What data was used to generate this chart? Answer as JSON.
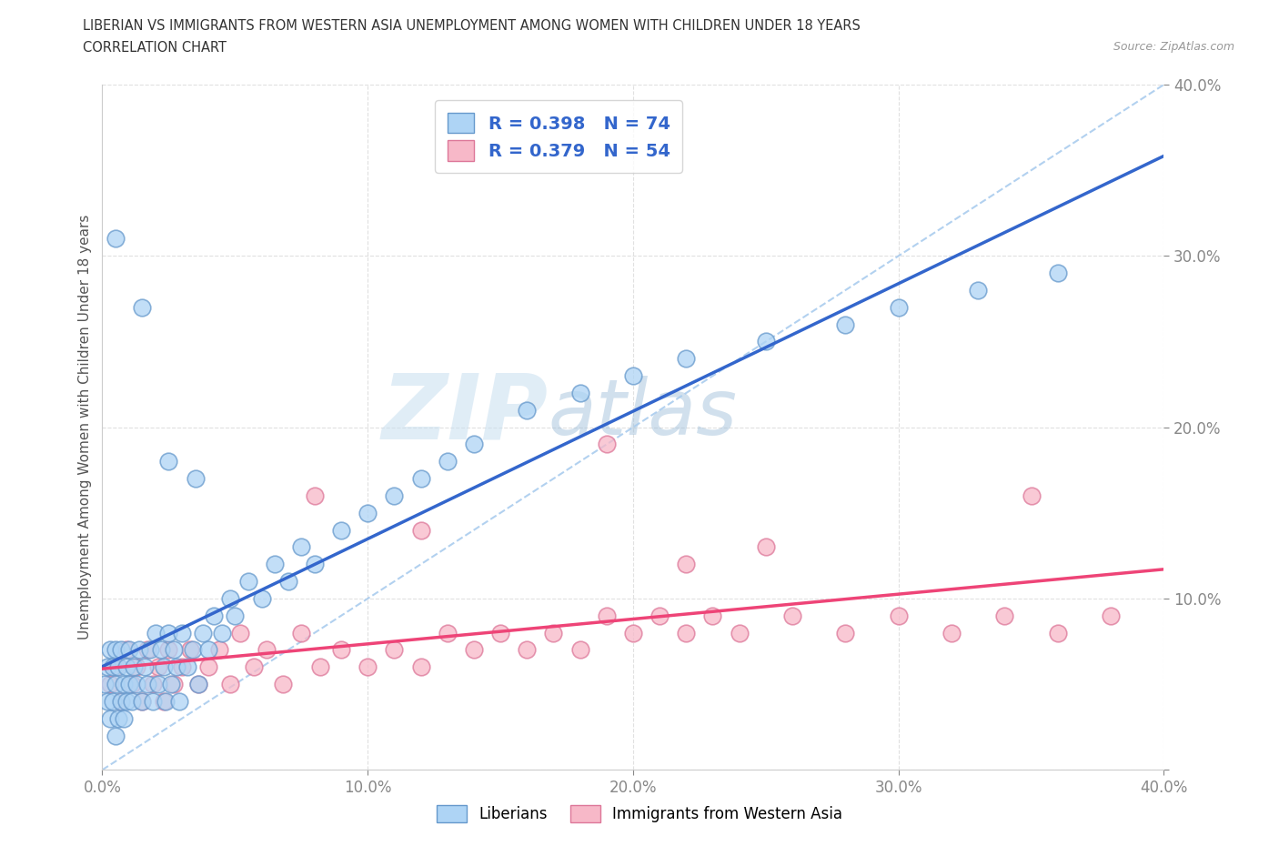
{
  "title_line1": "LIBERIAN VS IMMIGRANTS FROM WESTERN ASIA UNEMPLOYMENT AMONG WOMEN WITH CHILDREN UNDER 18 YEARS",
  "title_line2": "CORRELATION CHART",
  "source": "Source: ZipAtlas.com",
  "ylabel": "Unemployment Among Women with Children Under 18 years",
  "xlim": [
    0.0,
    0.4
  ],
  "ylim": [
    0.0,
    0.4
  ],
  "liberian_face_color": "#aed4f5",
  "liberian_edge_color": "#6699cc",
  "western_face_color": "#f7b8c8",
  "western_edge_color": "#dd7799",
  "liberian_line_color": "#3366cc",
  "western_line_color": "#ee4477",
  "diagonal_color": "#aaccee",
  "R_liberian": 0.398,
  "N_liberian": 74,
  "R_western": 0.379,
  "N_western": 54,
  "legend_text_color": "#3366cc",
  "title_color": "#333333",
  "axis_tick_color": "#6699cc",
  "grid_color": "#dddddd",
  "watermark_zip_color": "#d0e4f5",
  "watermark_atlas_color": "#b8d4e8",
  "lib_x": [
    0.001,
    0.002,
    0.002,
    0.003,
    0.003,
    0.004,
    0.004,
    0.005,
    0.005,
    0.005,
    0.006,
    0.006,
    0.007,
    0.007,
    0.008,
    0.008,
    0.009,
    0.009,
    0.01,
    0.01,
    0.011,
    0.012,
    0.013,
    0.014,
    0.015,
    0.016,
    0.017,
    0.018,
    0.019,
    0.02,
    0.021,
    0.022,
    0.023,
    0.024,
    0.025,
    0.026,
    0.027,
    0.028,
    0.029,
    0.03,
    0.032,
    0.034,
    0.036,
    0.038,
    0.04,
    0.042,
    0.045,
    0.048,
    0.05,
    0.055,
    0.06,
    0.065,
    0.07,
    0.075,
    0.08,
    0.09,
    0.1,
    0.11,
    0.12,
    0.13,
    0.14,
    0.16,
    0.18,
    0.2,
    0.22,
    0.25,
    0.28,
    0.3,
    0.33,
    0.36,
    0.005,
    0.015,
    0.025,
    0.035
  ],
  "lib_y": [
    0.05,
    0.04,
    0.06,
    0.03,
    0.07,
    0.04,
    0.06,
    0.02,
    0.05,
    0.07,
    0.03,
    0.06,
    0.04,
    0.07,
    0.03,
    0.05,
    0.04,
    0.06,
    0.05,
    0.07,
    0.04,
    0.06,
    0.05,
    0.07,
    0.04,
    0.06,
    0.05,
    0.07,
    0.04,
    0.08,
    0.05,
    0.07,
    0.06,
    0.04,
    0.08,
    0.05,
    0.07,
    0.06,
    0.04,
    0.08,
    0.06,
    0.07,
    0.05,
    0.08,
    0.07,
    0.09,
    0.08,
    0.1,
    0.09,
    0.11,
    0.1,
    0.12,
    0.11,
    0.13,
    0.12,
    0.14,
    0.15,
    0.16,
    0.17,
    0.18,
    0.19,
    0.21,
    0.22,
    0.23,
    0.24,
    0.25,
    0.26,
    0.27,
    0.28,
    0.29,
    0.31,
    0.27,
    0.18,
    0.17
  ],
  "west_x": [
    0.003,
    0.005,
    0.007,
    0.009,
    0.011,
    0.013,
    0.015,
    0.017,
    0.019,
    0.021,
    0.023,
    0.025,
    0.027,
    0.03,
    0.033,
    0.036,
    0.04,
    0.044,
    0.048,
    0.052,
    0.057,
    0.062,
    0.068,
    0.075,
    0.082,
    0.09,
    0.1,
    0.11,
    0.12,
    0.13,
    0.14,
    0.15,
    0.16,
    0.17,
    0.18,
    0.19,
    0.2,
    0.21,
    0.22,
    0.23,
    0.24,
    0.26,
    0.28,
    0.3,
    0.32,
    0.34,
    0.36,
    0.38,
    0.19,
    0.25,
    0.08,
    0.12,
    0.22,
    0.35
  ],
  "west_y": [
    0.05,
    0.06,
    0.04,
    0.07,
    0.05,
    0.06,
    0.04,
    0.07,
    0.05,
    0.06,
    0.04,
    0.07,
    0.05,
    0.06,
    0.07,
    0.05,
    0.06,
    0.07,
    0.05,
    0.08,
    0.06,
    0.07,
    0.05,
    0.08,
    0.06,
    0.07,
    0.06,
    0.07,
    0.06,
    0.08,
    0.07,
    0.08,
    0.07,
    0.08,
    0.07,
    0.09,
    0.08,
    0.09,
    0.08,
    0.09,
    0.08,
    0.09,
    0.08,
    0.09,
    0.08,
    0.09,
    0.08,
    0.09,
    0.19,
    0.13,
    0.16,
    0.14,
    0.12,
    0.16
  ]
}
